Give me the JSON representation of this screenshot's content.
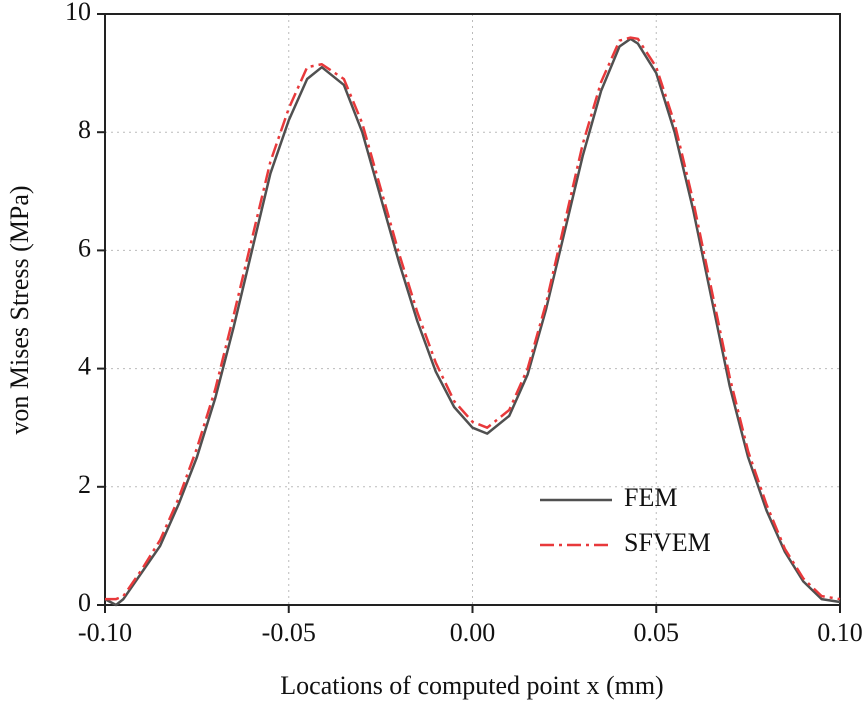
{
  "chart_data": {
    "type": "line",
    "xlabel": "Locations of computed point x (mm)",
    "ylabel": "von Mises Stress (MPa)",
    "x": [
      -0.1,
      -0.097,
      -0.095,
      -0.09,
      -0.085,
      -0.08,
      -0.075,
      -0.07,
      -0.065,
      -0.06,
      -0.055,
      -0.05,
      -0.045,
      -0.041,
      -0.035,
      -0.03,
      -0.025,
      -0.02,
      -0.015,
      -0.01,
      -0.005,
      0,
      0.004,
      0.01,
      0.015,
      0.02,
      0.025,
      0.03,
      0.035,
      0.04,
      0.043,
      0.045,
      0.05,
      0.055,
      0.06,
      0.065,
      0.07,
      0.075,
      0.08,
      0.085,
      0.09,
      0.095,
      0.1
    ],
    "series": [
      {
        "name": "FEM",
        "color": "#505050",
        "style": "solid",
        "values": [
          0.1,
          0.0,
          0.1,
          0.55,
          1.0,
          1.7,
          2.5,
          3.5,
          4.7,
          6.0,
          7.3,
          8.2,
          8.9,
          9.1,
          8.8,
          8.0,
          6.9,
          5.8,
          4.8,
          3.95,
          3.35,
          3.0,
          2.9,
          3.2,
          3.9,
          5.0,
          6.3,
          7.6,
          8.7,
          9.45,
          9.58,
          9.5,
          9.0,
          8.0,
          6.7,
          5.2,
          3.7,
          2.5,
          1.6,
          0.9,
          0.4,
          0.1,
          0.05
        ]
      },
      {
        "name": "SFVEM",
        "color": "#e8393b",
        "style": "dashdot",
        "values": [
          0.1,
          0.1,
          0.15,
          0.6,
          1.1,
          1.8,
          2.65,
          3.65,
          4.9,
          6.2,
          7.5,
          8.4,
          9.1,
          9.15,
          8.9,
          8.15,
          7.05,
          5.95,
          4.95,
          4.1,
          3.45,
          3.1,
          3.0,
          3.3,
          4.0,
          5.1,
          6.45,
          7.8,
          8.85,
          9.55,
          9.6,
          9.58,
          9.1,
          8.15,
          6.85,
          5.35,
          3.85,
          2.6,
          1.7,
          0.95,
          0.45,
          0.15,
          0.1
        ]
      }
    ],
    "xlim": [
      -0.1,
      0.1
    ],
    "xticks": [
      {
        "value": -0.1,
        "label": "-0.10"
      },
      -0.05,
      {
        "value": 0,
        "label": "0.00"
      },
      0.05,
      {
        "value": 0.1,
        "label": "0.10"
      }
    ],
    "ylim": [
      0,
      10
    ],
    "yticks": [
      0,
      2,
      4,
      6,
      8,
      10
    ],
    "grid": true,
    "legend": "lower right"
  }
}
